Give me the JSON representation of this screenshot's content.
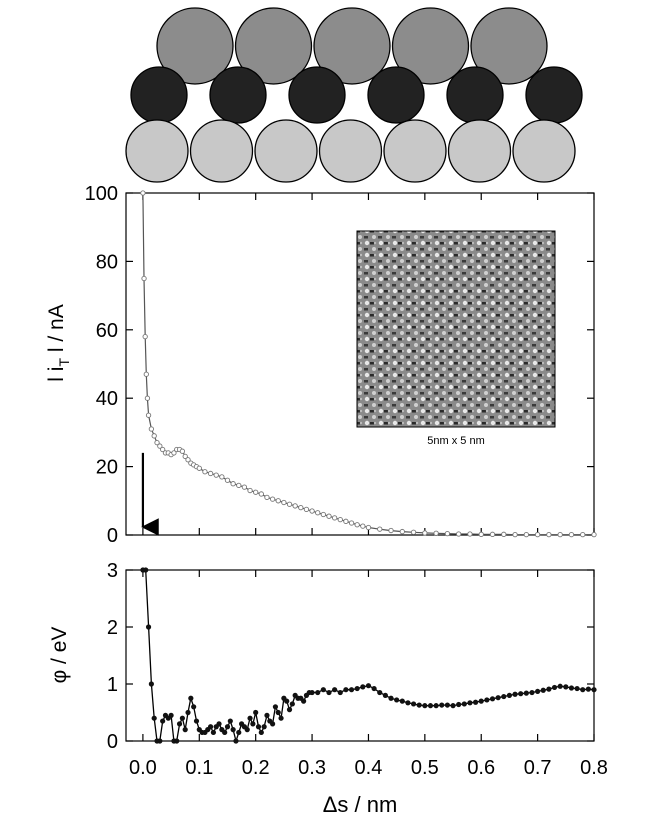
{
  "schematic": {
    "rows": [
      {
        "name": "top-row",
        "count": 5,
        "color": "#8c8c8c"
      },
      {
        "name": "middle-row",
        "count": 6,
        "color": "#222222"
      },
      {
        "name": "bottom-row",
        "count": 7,
        "color": "#c8c8c8"
      }
    ]
  },
  "chart_data": [
    {
      "type": "scatter",
      "title": "",
      "xlabel": "",
      "ylabel": "l i_T l / nA",
      "ylabel_main": "l i",
      "ylabel_sub": "T",
      "ylabel_tail": " l / nA",
      "xlim": [
        -0.03,
        0.8
      ],
      "ylim": [
        0,
        100
      ],
      "yticks": [
        "0",
        "20",
        "40",
        "60",
        "80",
        "100"
      ],
      "grid": false,
      "arrow": {
        "x": 0.0,
        "from_y": 24,
        "to_y": 0
      },
      "inset": {
        "label": "5nm x 5 nm"
      },
      "series": [
        {
          "marker": "open-circle",
          "x": [
            0.0,
            0.002,
            0.004,
            0.006,
            0.008,
            0.01,
            0.015,
            0.02,
            0.025,
            0.03,
            0.035,
            0.04,
            0.045,
            0.05,
            0.055,
            0.06,
            0.065,
            0.07,
            0.075,
            0.08,
            0.085,
            0.09,
            0.095,
            0.1,
            0.11,
            0.12,
            0.13,
            0.14,
            0.15,
            0.16,
            0.17,
            0.18,
            0.19,
            0.2,
            0.21,
            0.22,
            0.23,
            0.24,
            0.25,
            0.26,
            0.27,
            0.28,
            0.29,
            0.3,
            0.31,
            0.32,
            0.33,
            0.34,
            0.35,
            0.36,
            0.37,
            0.38,
            0.39,
            0.4,
            0.42,
            0.44,
            0.46,
            0.48,
            0.5,
            0.52,
            0.54,
            0.56,
            0.58,
            0.6,
            0.62,
            0.64,
            0.66,
            0.68,
            0.7,
            0.72,
            0.74,
            0.76,
            0.78,
            0.8
          ],
          "y": [
            100,
            75,
            58,
            47,
            40,
            35,
            31,
            29,
            27,
            26,
            25,
            24,
            24,
            23.5,
            24,
            25,
            25,
            24.5,
            23,
            22,
            21,
            20.5,
            20,
            19.5,
            18.5,
            18,
            17.5,
            17,
            16,
            15,
            14.5,
            14,
            13,
            12.5,
            12,
            11,
            10.5,
            10,
            9.5,
            9,
            8.5,
            8,
            7.5,
            7,
            6.5,
            6,
            5.5,
            5,
            4.5,
            4,
            3.5,
            3,
            2.6,
            2.2,
            1.7,
            1.3,
            1.0,
            0.8,
            0.6,
            0.5,
            0.4,
            0.3,
            0.3,
            0.2,
            0.2,
            0.2,
            0.1,
            0.1,
            0.1,
            0.1,
            0.1,
            0.1,
            0.1,
            0.1
          ]
        }
      ]
    },
    {
      "type": "line",
      "title": "",
      "xlabel": "Δs / nm",
      "ylabel": "φ / eV",
      "xlim": [
        -0.03,
        0.8
      ],
      "ylim": [
        0,
        3
      ],
      "xticks": [
        "0.0",
        "0.1",
        "0.2",
        "0.3",
        "0.4",
        "0.5",
        "0.6",
        "0.7",
        "0.8"
      ],
      "yticks": [
        "0",
        "1",
        "2",
        "3"
      ],
      "grid": false,
      "series": [
        {
          "marker": "filled-circle",
          "x": [
            0.0,
            0.005,
            0.01,
            0.015,
            0.02,
            0.025,
            0.03,
            0.035,
            0.04,
            0.045,
            0.05,
            0.055,
            0.06,
            0.065,
            0.07,
            0.075,
            0.08,
            0.085,
            0.09,
            0.095,
            0.1,
            0.105,
            0.11,
            0.115,
            0.12,
            0.125,
            0.13,
            0.135,
            0.14,
            0.145,
            0.15,
            0.155,
            0.16,
            0.165,
            0.17,
            0.175,
            0.18,
            0.185,
            0.19,
            0.195,
            0.2,
            0.205,
            0.21,
            0.215,
            0.22,
            0.225,
            0.23,
            0.235,
            0.24,
            0.245,
            0.25,
            0.255,
            0.26,
            0.265,
            0.27,
            0.275,
            0.28,
            0.285,
            0.29,
            0.295,
            0.3,
            0.31,
            0.32,
            0.33,
            0.34,
            0.35,
            0.36,
            0.37,
            0.38,
            0.39,
            0.4,
            0.41,
            0.42,
            0.43,
            0.44,
            0.45,
            0.46,
            0.47,
            0.48,
            0.49,
            0.5,
            0.51,
            0.52,
            0.53,
            0.54,
            0.55,
            0.56,
            0.57,
            0.58,
            0.59,
            0.6,
            0.61,
            0.62,
            0.63,
            0.64,
            0.65,
            0.66,
            0.67,
            0.68,
            0.69,
            0.7,
            0.71,
            0.72,
            0.73,
            0.74,
            0.75,
            0.76,
            0.77,
            0.78,
            0.79,
            0.8
          ],
          "y": [
            3.0,
            3.0,
            2.0,
            1.0,
            0.4,
            0.0,
            0.0,
            0.35,
            0.45,
            0.4,
            0.45,
            0.0,
            0.0,
            0.3,
            0.4,
            0.2,
            0.5,
            0.75,
            0.6,
            0.35,
            0.2,
            0.15,
            0.15,
            0.2,
            0.25,
            0.15,
            0.25,
            0.3,
            0.2,
            0.15,
            0.25,
            0.35,
            0.2,
            0.0,
            0.15,
            0.3,
            0.25,
            0.2,
            0.4,
            0.3,
            0.5,
            0.25,
            0.15,
            0.25,
            0.45,
            0.35,
            0.3,
            0.6,
            0.5,
            0.4,
            0.75,
            0.7,
            0.55,
            0.65,
            0.8,
            0.75,
            0.75,
            0.7,
            0.8,
            0.85,
            0.85,
            0.85,
            0.9,
            0.85,
            0.9,
            0.85,
            0.9,
            0.9,
            0.92,
            0.95,
            0.97,
            0.92,
            0.85,
            0.8,
            0.75,
            0.72,
            0.7,
            0.67,
            0.65,
            0.63,
            0.62,
            0.62,
            0.62,
            0.63,
            0.63,
            0.62,
            0.64,
            0.65,
            0.67,
            0.68,
            0.7,
            0.72,
            0.74,
            0.76,
            0.78,
            0.8,
            0.82,
            0.83,
            0.84,
            0.85,
            0.87,
            0.89,
            0.91,
            0.94,
            0.96,
            0.95,
            0.93,
            0.92,
            0.9,
            0.91,
            0.9
          ]
        }
      ]
    }
  ]
}
